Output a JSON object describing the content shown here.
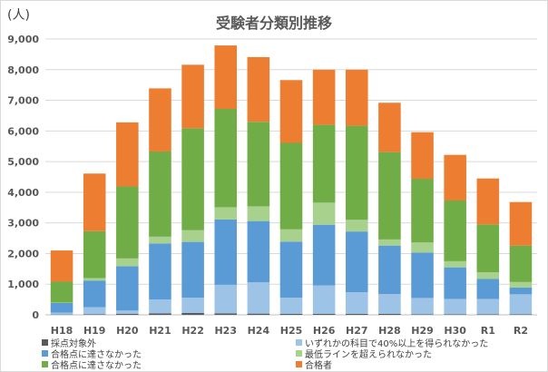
{
  "unit_label": "(人)",
  "chart_data": {
    "type": "bar",
    "stacked": true,
    "title": "受験者分類別推移",
    "xlabel": "",
    "ylabel": "(人)",
    "ylim": [
      0,
      9000
    ],
    "yticks": [
      "0",
      "1,000",
      "2,000",
      "3,000",
      "4,000",
      "5,000",
      "6,000",
      "7,000",
      "8,000",
      "9,000"
    ],
    "grid": true,
    "legend_position": "bottom",
    "categories": [
      "H18",
      "H19",
      "H20",
      "H21",
      "H22",
      "H23",
      "H24",
      "H25",
      "H26",
      "H27",
      "H28",
      "H29",
      "H30",
      "R1",
      "R2"
    ],
    "series": [
      {
        "name": "採点対象外",
        "color": "#595959",
        "values": [
          10,
          20,
          30,
          50,
          60,
          50,
          40,
          30,
          30,
          30,
          30,
          20,
          20,
          20,
          20
        ]
      },
      {
        "name": "いずれかの科目で40%以上を得られなかった",
        "color": "#9dc3e6",
        "values": [
          60,
          230,
          110,
          450,
          500,
          930,
          1020,
          530,
          930,
          710,
          650,
          530,
          500,
          500,
          650
        ]
      },
      {
        "name": "合格点に達さなかった",
        "color": "#5b9bd5",
        "values": [
          320,
          870,
          1450,
          1830,
          1820,
          2130,
          2000,
          1830,
          1980,
          1980,
          1580,
          1480,
          1030,
          650,
          220
        ]
      },
      {
        "name": "最低ラインを超えられなかった",
        "color": "#a9d18e",
        "values": [
          10,
          80,
          250,
          220,
          380,
          400,
          480,
          400,
          720,
          380,
          200,
          330,
          200,
          220,
          180
        ]
      },
      {
        "name": "合格点に達さなかった",
        "color": "#70ad47",
        "values": [
          680,
          1530,
          2350,
          2780,
          3330,
          3210,
          2760,
          2820,
          2540,
          3070,
          2850,
          2080,
          1980,
          1560,
          1190
        ]
      },
      {
        "name": "合格者",
        "color": "#ed7d31",
        "values": [
          1020,
          1880,
          2090,
          2060,
          2070,
          2070,
          2110,
          2050,
          1800,
          1830,
          1610,
          1520,
          1490,
          1500,
          1420
        ]
      }
    ]
  }
}
